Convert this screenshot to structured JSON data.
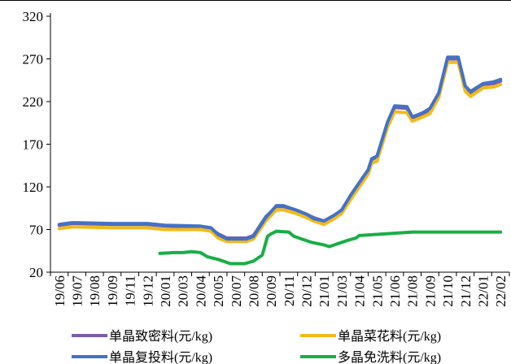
{
  "chart_data": {
    "type": "line",
    "title": "",
    "xlabel": "",
    "ylabel": "",
    "ylim": [
      20,
      320
    ],
    "yticks": [
      20,
      70,
      120,
      170,
      220,
      270,
      320
    ],
    "xticks": [
      "19/06",
      "19/07",
      "19/08",
      "19/09",
      "19/11",
      "19/12",
      "20/01",
      "20/03",
      "20/04",
      "20/05",
      "20/07",
      "20/08",
      "20/09",
      "20/11",
      "20/12",
      "21/01",
      "21/03",
      "21/04",
      "21/05",
      "21/06",
      "21/08",
      "21/09",
      "21/10",
      "21/12",
      "22/01",
      "22/02"
    ],
    "grid": false,
    "legend_position": "bottom",
    "series": [
      {
        "name": "单晶致密料(元/kg)",
        "color": "#7B5EA7",
        "x": [
          0,
          0.7,
          1,
          3,
          5,
          6,
          8,
          8.6,
          9,
          9.5,
          10.6,
          11,
          11.7,
          12.3,
          12.7,
          13.4,
          14,
          14.4,
          15,
          15.6,
          16,
          16.5,
          17,
          17.5,
          17.7,
          18,
          18.6,
          19,
          19.7,
          20,
          20.6,
          21,
          21.5,
          22,
          22.2,
          22.6,
          23,
          23.3,
          24,
          24.6,
          25
        ],
        "values": [
          75,
          77,
          77,
          76,
          76,
          74,
          73,
          71,
          65,
          60,
          60,
          63,
          85,
          97,
          97,
          93,
          88,
          84,
          80,
          87,
          92,
          110,
          125,
          140,
          152,
          155,
          195,
          213,
          212,
          200,
          205,
          210,
          228,
          270,
          270,
          270,
          237,
          230,
          240,
          241,
          244
        ]
      },
      {
        "name": "单晶菜花料(元/kg)",
        "color": "#F2BA1B",
        "x": [
          0,
          0.7,
          1,
          3,
          5,
          6,
          8,
          8.6,
          9,
          9.5,
          10.6,
          11,
          11.7,
          12.3,
          12.7,
          13.4,
          14,
          14.4,
          15,
          15.6,
          16,
          16.5,
          17,
          17.5,
          17.7,
          18,
          18.6,
          19,
          19.7,
          20,
          20.6,
          21,
          21.5,
          22,
          22.2,
          22.6,
          23,
          23.3,
          24,
          24.6,
          25
        ],
        "values": [
          71,
          73,
          73,
          72,
          72,
          70,
          70,
          68,
          60,
          56,
          56,
          59,
          80,
          93,
          93,
          89,
          84,
          80,
          76,
          83,
          89,
          105,
          120,
          135,
          148,
          150,
          190,
          208,
          207,
          197,
          202,
          206,
          225,
          266,
          266,
          266,
          232,
          226,
          236,
          237,
          240
        ]
      },
      {
        "name": "单晶复投料(元/kg)",
        "color": "#4472C4",
        "x": [
          0,
          0.7,
          1,
          3,
          5,
          6,
          8,
          8.6,
          9,
          9.5,
          10.6,
          11,
          11.7,
          12.3,
          12.7,
          13.4,
          14,
          14.4,
          15,
          15.6,
          16,
          16.5,
          17,
          17.5,
          17.7,
          18,
          18.6,
          19,
          19.7,
          20,
          20.6,
          21,
          21.5,
          22,
          22.2,
          22.6,
          23,
          23.3,
          24,
          24.6,
          25
        ],
        "values": [
          76,
          78,
          78,
          77,
          77,
          75,
          74,
          72,
          64,
          59,
          59,
          62,
          84,
          98,
          98,
          93,
          88,
          83,
          80,
          87,
          93,
          110,
          125,
          140,
          153,
          156,
          196,
          215,
          214,
          202,
          207,
          212,
          230,
          272,
          272,
          272,
          238,
          232,
          241,
          243,
          246
        ]
      },
      {
        "name": "多晶免洗料(元/kg)",
        "color": "#1AAE47",
        "x": [
          5.7,
          6.5,
          7,
          7.5,
          8,
          8.4,
          9,
          9.7,
          10.5,
          11,
          11.5,
          11.8,
          12,
          12.3,
          13,
          13.3,
          14,
          14.3,
          15,
          15.3,
          16,
          16.3,
          16.8,
          17,
          20,
          25
        ],
        "values": [
          42,
          43,
          43,
          44,
          43,
          38,
          35,
          30,
          30,
          33,
          40,
          62,
          65,
          68,
          67,
          62,
          57,
          55,
          52,
          50,
          55,
          57,
          60,
          63,
          67,
          67
        ]
      }
    ]
  }
}
